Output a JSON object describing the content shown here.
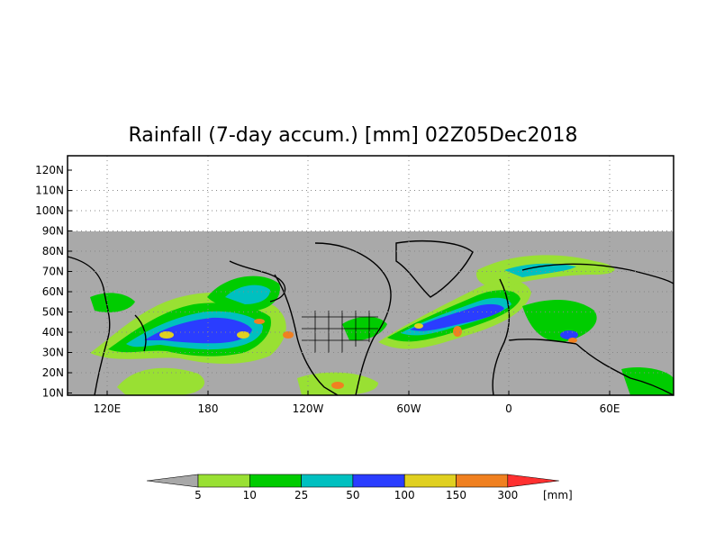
{
  "title": "Rainfall (7-day accum.) [mm] 02Z05Dec2018",
  "map": {
    "lat_labels": [
      "120N",
      "110N",
      "100N",
      "90N",
      "80N",
      "70N",
      "60N",
      "50N",
      "40N",
      "30N",
      "20N",
      "10N"
    ],
    "lon_labels": [
      "120E",
      "180",
      "120W",
      "60W",
      "0",
      "60E"
    ],
    "missing_color": "#a9a9a9",
    "coast_color": "#000000"
  },
  "colorbar": {
    "colors": [
      "#a8a8a8",
      "#99e033",
      "#00cc00",
      "#00c0c0",
      "#2a3dff",
      "#e0d020",
      "#f08020",
      "#ff3030"
    ],
    "labels": [
      "5",
      "10",
      "25",
      "50",
      "100",
      "150",
      "300"
    ],
    "unit": "[mm]"
  },
  "colors": {
    "light_green": "#99e033",
    "green": "#00cc00",
    "cyan": "#00c0c0",
    "blue": "#2a3dff",
    "yellow": "#e0d020",
    "orange": "#f08020"
  }
}
